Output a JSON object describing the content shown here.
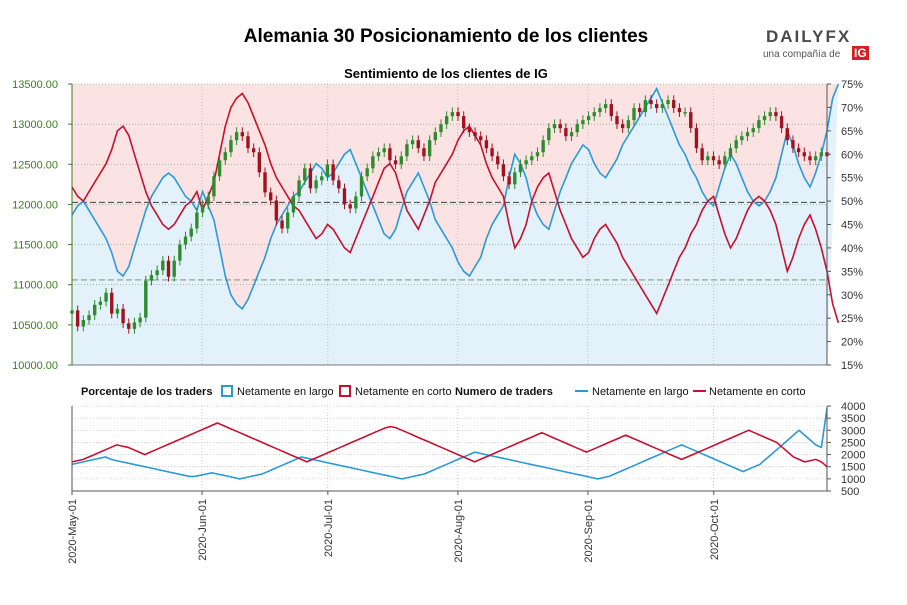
{
  "header": {
    "title": "Alemania 30 Posicionamiento de los clientes",
    "subtitle": "Sentimiento de los clientes de IG"
  },
  "logo": {
    "name": "DAILYFX",
    "tagline": "una compañía de",
    "badge": "IG",
    "badge_color": "#d22020"
  },
  "legend": {
    "pct_title": "Porcentaje de los traders",
    "pct_long": "Netamente en largo",
    "pct_short": "Netamente en corto",
    "num_title": "Numero de traders",
    "num_long": "Netamente en largo",
    "num_short": "Netamente en corto"
  },
  "colors": {
    "long": "#2a9ad6",
    "short": "#c8102e",
    "long_fill": "#e3f1fa",
    "short_fill": "#fbe3e3",
    "candle_up": "#2e8b2e",
    "candle_down": "#a0121e",
    "axis_left": "#3a7d1e"
  },
  "chart_data": [
    {
      "type": "candlestick+area",
      "title": "Sentimiento de los clientes de IG",
      "left_axis": {
        "ylim": [
          10000,
          13500
        ],
        "ticks": [
          "10000.00",
          "10500.00",
          "11000.00",
          "11500.00",
          "12000.00",
          "12500.00",
          "13000.00",
          "13500.00"
        ]
      },
      "right_axis": {
        "ylim": [
          15,
          75
        ],
        "ticks": [
          "15%",
          "20%",
          "25%",
          "30%",
          "35%",
          "40%",
          "45%",
          "50%",
          "55%",
          "60%",
          "65%",
          "70%",
          "75%"
        ]
      },
      "reference_lines": [
        12025,
        11060
      ],
      "x_ticks": [
        "2020-May-01",
        "2020-Jun-01",
        "2020-Jul-01",
        "2020-Aug-01",
        "2020-Sep-01",
        "2020-Oct-01"
      ],
      "x_range_days": 180,
      "close": [
        10680,
        10480,
        10560,
        10620,
        10750,
        10790,
        10900,
        10640,
        10700,
        10520,
        10450,
        10530,
        10590,
        11050,
        11120,
        11180,
        11300,
        11100,
        11300,
        11500,
        11600,
        11700,
        11900,
        12000,
        12100,
        12350,
        12550,
        12650,
        12800,
        12900,
        12850,
        12700,
        12650,
        12400,
        12150,
        12050,
        11800,
        11700,
        11900,
        12100,
        12300,
        12450,
        12200,
        12300,
        12350,
        12500,
        12300,
        12200,
        12000,
        11950,
        12100,
        12350,
        12450,
        12600,
        12650,
        12700,
        12550,
        12500,
        12600,
        12750,
        12800,
        12700,
        12600,
        12800,
        12900,
        13000,
        13100,
        13150,
        13100,
        12950,
        12900,
        12850,
        12800,
        12700,
        12600,
        12500,
        12350,
        12250,
        12400,
        12500,
        12550,
        12600,
        12650,
        12800,
        12950,
        13000,
        12950,
        12850,
        12900,
        13000,
        13050,
        13100,
        13150,
        13200,
        13250,
        13100,
        13000,
        12950,
        13050,
        13200,
        13150,
        13300,
        13250,
        13200,
        13250,
        13300,
        13200,
        13150,
        13150,
        12950,
        12700,
        12550,
        12600,
        12550,
        12500,
        12600,
        12700,
        12800,
        12850,
        12900,
        12950,
        13050,
        13100,
        13150,
        13100,
        12950,
        12800,
        12700,
        12650,
        12600,
        12550,
        12600,
        12650,
        12600
      ],
      "long_pct": [
        47,
        49,
        50,
        48,
        46,
        44,
        42,
        39,
        35,
        34,
        36,
        40,
        44,
        48,
        51,
        53,
        55,
        56,
        55,
        53,
        51,
        50,
        48,
        52,
        49,
        46,
        40,
        34,
        30,
        28,
        27,
        29,
        32,
        35,
        38,
        42,
        45,
        47,
        49,
        51,
        52,
        54,
        56,
        58,
        57,
        55,
        56,
        58,
        60,
        61,
        58,
        55,
        52,
        49,
        46,
        43,
        42,
        44,
        48,
        52,
        54,
        56,
        53,
        50,
        46,
        44,
        42,
        40,
        37,
        35,
        34,
        36,
        38,
        42,
        45,
        47,
        49,
        55,
        60,
        58,
        55,
        50,
        47,
        45,
        44,
        48,
        52,
        55,
        58,
        60,
        62,
        61,
        58,
        56,
        55,
        57,
        59,
        62,
        64,
        66,
        68,
        70,
        72,
        74,
        71,
        68,
        65,
        62,
        60,
        57,
        55,
        52,
        50,
        49,
        53,
        57,
        60,
        58,
        55,
        52,
        50,
        49,
        50,
        52,
        55,
        60,
        65,
        62,
        58,
        55,
        53,
        56,
        60,
        65,
        72,
        76
      ]
    },
    {
      "type": "line",
      "title": "Numero de traders",
      "ylim": [
        500,
        4000
      ],
      "y_ticks": [
        "500",
        "1000",
        "1500",
        "2000",
        "2500",
        "3000",
        "3500",
        "4000"
      ],
      "x_ticks": [
        "2020-May-01",
        "2020-Jun-01",
        "2020-Jul-01",
        "2020-Aug-01",
        "2020-Sep-01",
        "2020-Oct-01"
      ],
      "series": [
        {
          "name": "Netamente en largo",
          "values": [
            1600,
            1650,
            1700,
            1750,
            1800,
            1850,
            1900,
            1800,
            1750,
            1700,
            1650,
            1600,
            1550,
            1500,
            1450,
            1400,
            1350,
            1300,
            1250,
            1200,
            1150,
            1100,
            1100,
            1150,
            1200,
            1250,
            1200,
            1150,
            1100,
            1050,
            1000,
            1050,
            1100,
            1150,
            1200,
            1300,
            1400,
            1500,
            1600,
            1700,
            1800,
            1900,
            1850,
            1800,
            1750,
            1700,
            1650,
            1600,
            1550,
            1500,
            1450,
            1400,
            1350,
            1300,
            1250,
            1200,
            1150,
            1100,
            1050,
            1000,
            1050,
            1100,
            1150,
            1200,
            1300,
            1400,
            1500,
            1600,
            1700,
            1800,
            1900,
            2000,
            2100,
            2050,
            2000,
            1950,
            1900,
            1850,
            1800,
            1750,
            1700,
            1650,
            1600,
            1550,
            1500,
            1450,
            1400,
            1350,
            1300,
            1250,
            1200,
            1150,
            1100,
            1050,
            1000,
            1050,
            1100,
            1200,
            1300,
            1400,
            1500,
            1600,
            1700,
            1800,
            1900,
            2000,
            2100,
            2200,
            2300,
            2400,
            2300,
            2200,
            2100,
            2000,
            1900,
            1800,
            1700,
            1600,
            1500,
            1400,
            1300,
            1400,
            1500,
            1600,
            1800,
            2000,
            2200,
            2400,
            2600,
            2800,
            3000,
            2800,
            2600,
            2400,
            2300,
            3900
          ]
        },
        {
          "name": "Netamente en corto",
          "values": [
            1700,
            1750,
            1800,
            1900,
            2000,
            2100,
            2200,
            2300,
            2400,
            2350,
            2300,
            2200,
            2100,
            2000,
            2100,
            2200,
            2300,
            2400,
            2500,
            2600,
            2700,
            2800,
            2900,
            3000,
            3100,
            3200,
            3300,
            3200,
            3100,
            3000,
            2900,
            2800,
            2700,
            2600,
            2500,
            2400,
            2300,
            2200,
            2100,
            2000,
            1900,
            1800,
            1700,
            1800,
            1900,
            2000,
            2100,
            2200,
            2300,
            2400,
            2500,
            2600,
            2700,
            2800,
            2900,
            3000,
            3100,
            3150,
            3100,
            3000,
            2900,
            2800,
            2700,
            2600,
            2500,
            2400,
            2300,
            2200,
            2100,
            2000,
            1900,
            1800,
            1700,
            1800,
            1900,
            2000,
            2100,
            2200,
            2300,
            2400,
            2500,
            2600,
            2700,
            2800,
            2900,
            2800,
            2700,
            2600,
            2500,
            2400,
            2300,
            2200,
            2100,
            2200,
            2300,
            2400,
            2500,
            2600,
            2700,
            2800,
            2700,
            2600,
            2500,
            2400,
            2300,
            2200,
            2100,
            2000,
            1900,
            1800,
            1900,
            2000,
            2100,
            2200,
            2300,
            2400,
            2500,
            2600,
            2700,
            2800,
            2900,
            3000,
            2900,
            2800,
            2700,
            2600,
            2500,
            2300,
            2100,
            1900,
            1800,
            1700,
            1750,
            1800,
            1700,
            1500
          ]
        }
      ]
    }
  ]
}
